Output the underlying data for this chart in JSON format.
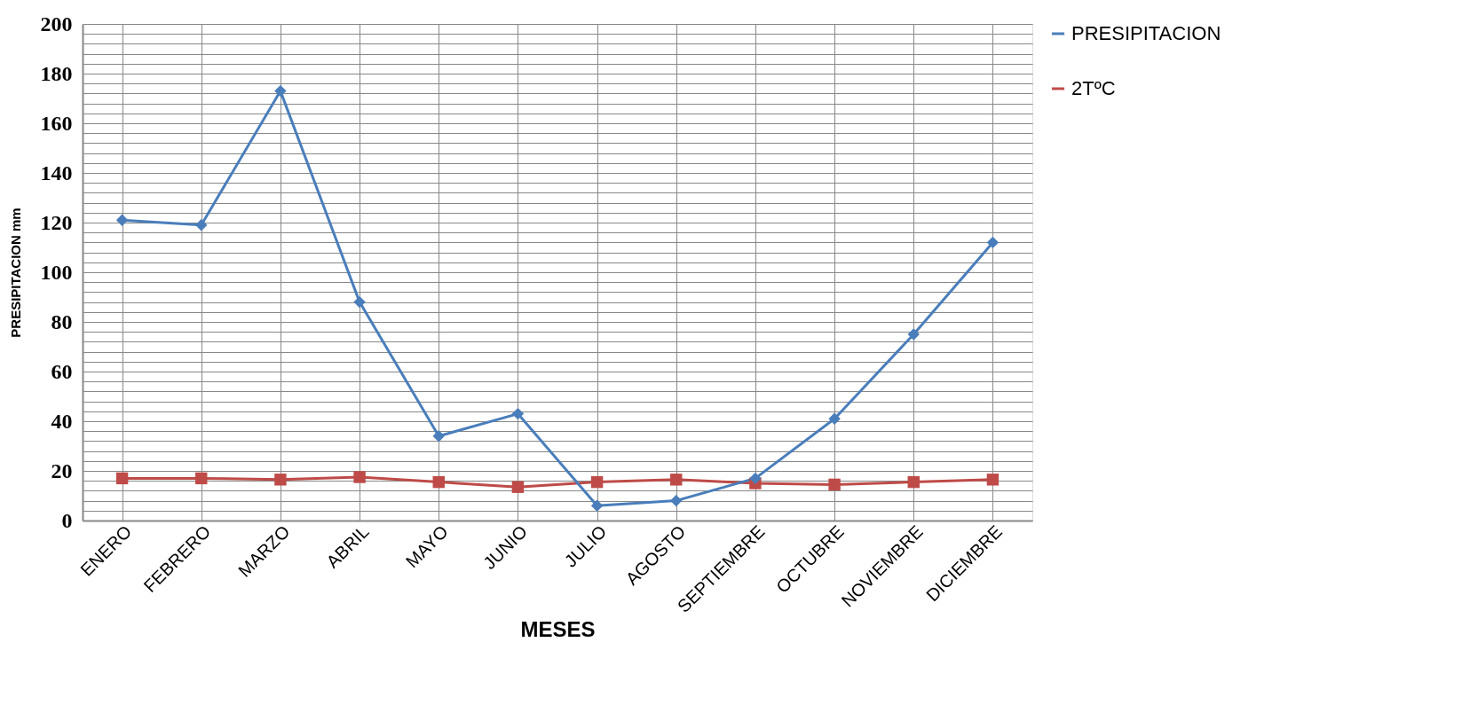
{
  "chart_data": {
    "type": "line",
    "xlabel": "MESES",
    "ylabel": "PRESIPITACION mm",
    "categories": [
      "ENERO",
      "FEBRERO",
      "MARZO",
      "ABRIL",
      "MAYO",
      "JUNIO",
      "JULIO",
      "AGOSTO",
      "SEPTIEMBRE",
      "OCTUBRE",
      "NOVIEMBRE",
      "DICIEMBRE"
    ],
    "series": [
      {
        "name": "PRESIPITACION",
        "color": "#4a7ebb",
        "marker": "diamond",
        "values": [
          121,
          119,
          173,
          88,
          34,
          43,
          6,
          8,
          17,
          41,
          75,
          112
        ]
      },
      {
        "name": "2TºC",
        "color": "#be4b48",
        "marker": "square",
        "values": [
          17,
          17,
          16.5,
          17.5,
          15.5,
          13.5,
          15.5,
          16.5,
          15,
          14.5,
          15.5,
          16.5
        ]
      }
    ],
    "ylim": [
      0,
      200
    ],
    "yticks": [
      0,
      {
        "value": 4,
        "label": null
      },
      {
        "value": 8,
        "label": null
      },
      {
        "value": 12,
        "label": null
      },
      {
        "value": 16,
        "label": null
      },
      20,
      {
        "value": 24,
        "label": null
      },
      {
        "value": 28,
        "label": null
      },
      {
        "value": 32,
        "label": null
      },
      {
        "value": 36,
        "label": null
      },
      40,
      {
        "value": 44,
        "label": null
      },
      {
        "value": 48,
        "label": null
      },
      {
        "value": 52,
        "label": null
      },
      {
        "value": 56,
        "label": null
      },
      60,
      {
        "value": 64,
        "label": null
      },
      {
        "value": 68,
        "label": null
      },
      {
        "value": 72,
        "label": null
      },
      {
        "value": 76,
        "label": null
      },
      80,
      {
        "value": 84,
        "label": null
      },
      {
        "value": 88,
        "label": null
      },
      {
        "value": 92,
        "label": null
      },
      {
        "value": 96,
        "label": null
      },
      100,
      {
        "value": 104,
        "label": null
      },
      {
        "value": 108,
        "label": null
      },
      {
        "value": 112,
        "label": null
      },
      {
        "value": 116,
        "label": null
      },
      120,
      {
        "value": 124,
        "label": null
      },
      {
        "value": 128,
        "label": null
      },
      {
        "value": 132,
        "label": null
      },
      {
        "value": 136,
        "label": null
      },
      140,
      {
        "value": 144,
        "label": null
      },
      {
        "value": 148,
        "label": null
      },
      {
        "value": 152,
        "label": null
      },
      {
        "value": 156,
        "label": null
      },
      160,
      {
        "value": 164,
        "label": null
      },
      {
        "value": 168,
        "label": null
      },
      {
        "value": 172,
        "label": null
      },
      {
        "value": 176,
        "label": null
      },
      180,
      {
        "value": 184,
        "label": null
      },
      {
        "value": 188,
        "label": null
      },
      {
        "value": 192,
        "label": null
      },
      {
        "value": 196,
        "label": null
      },
      200
    ],
    "grid": true,
    "legend": "right",
    "line_style": "solid"
  }
}
